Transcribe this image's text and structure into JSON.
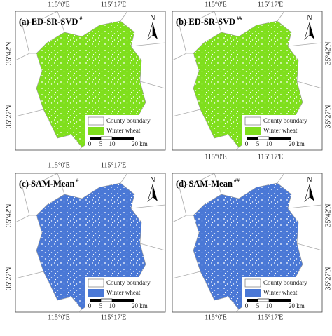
{
  "panels": [
    {
      "label": "(a) ED-SR-SVD",
      "mark": "#",
      "color": "#7fdf1c"
    },
    {
      "label": "(b) ED-SR-SVD",
      "mark": "##",
      "color": "#7fdf1c"
    },
    {
      "label": "(c) SAM-Mean",
      "mark": "#",
      "color": "#4a78d6"
    },
    {
      "label": "(d) SAM-Mean",
      "mark": "##",
      "color": "#4a78d6"
    }
  ],
  "north": "N",
  "legend": {
    "boundary": "County boundary",
    "wheat": "Winter wheat"
  },
  "scale": [
    "0",
    "5",
    "10",
    "20 km"
  ],
  "longitudes": [
    "115°0'E",
    "115°17'E"
  ],
  "latitudes": [
    "35°42'N",
    "35°27'N"
  ]
}
